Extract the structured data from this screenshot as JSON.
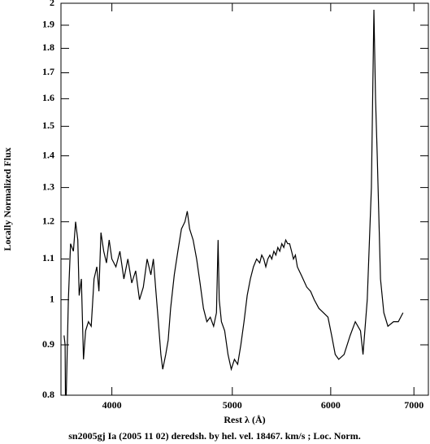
{
  "chart_data": {
    "type": "line",
    "xlabel": "Rest λ (Å)",
    "ylabel": "Locally Normalized Flux",
    "caption": "sn2005gj Ia (2005 11 02) deredsh. by hel. vel. 18467. km/s ;  Loc. Norm.",
    "xscale": "log",
    "yscale": "log",
    "xlim": [
      3640,
      7190
    ],
    "xticks": [
      4000,
      5000,
      6000,
      7000
    ],
    "ylim": [
      0.8,
      2
    ],
    "yticks": [
      0.8,
      0.9,
      1,
      1.1,
      1.2,
      1.3,
      1.4,
      1.5,
      1.6,
      1.7,
      1.8,
      1.9,
      2
    ],
    "series": [
      {
        "color": "#000000",
        "x": [
          3661,
          3668,
          3670,
          3676,
          3690,
          3705,
          3725,
          3740,
          3755,
          3765,
          3780,
          3795,
          3810,
          3830,
          3850,
          3870,
          3890,
          3905,
          3920,
          3940,
          3960,
          3980,
          4000,
          4030,
          4060,
          4090,
          4120,
          4150,
          4180,
          4210,
          4240,
          4270,
          4300,
          4320,
          4340,
          4360,
          4380,
          4395,
          4420,
          4440,
          4460,
          4490,
          4520,
          4550,
          4580,
          4600,
          4620,
          4650,
          4680,
          4710,
          4740,
          4770,
          4800,
          4830,
          4855,
          4870,
          4880,
          4900,
          4930,
          4960,
          4990,
          5020,
          5050,
          5080,
          5110,
          5140,
          5170,
          5200,
          5230,
          5260,
          5280,
          5300,
          5320,
          5340,
          5360,
          5380,
          5400,
          5420,
          5440,
          5460,
          5480,
          5500,
          5520,
          5540,
          5560,
          5580,
          5600,
          5620,
          5640,
          5660,
          5680,
          5700,
          5740,
          5780,
          5820,
          5870,
          5920,
          5970,
          6010,
          6050,
          6090,
          6150,
          6220,
          6280,
          6340,
          6370,
          6420,
          6470,
          6500,
          6520,
          6540,
          6580,
          6620,
          6670,
          6740,
          6800,
          6860
        ],
        "values": [
          0.92,
          0.9,
          0.8,
          0.8,
          1.0,
          1.14,
          1.12,
          1.2,
          1.15,
          1.01,
          1.05,
          0.87,
          0.93,
          0.95,
          0.94,
          1.05,
          1.08,
          1.02,
          1.17,
          1.12,
          1.09,
          1.15,
          1.1,
          1.08,
          1.12,
          1.05,
          1.1,
          1.04,
          1.07,
          1.0,
          1.03,
          1.1,
          1.06,
          1.1,
          1.02,
          0.95,
          0.88,
          0.85,
          0.88,
          0.91,
          0.98,
          1.06,
          1.12,
          1.18,
          1.2,
          1.23,
          1.18,
          1.15,
          1.1,
          1.04,
          0.98,
          0.95,
          0.96,
          0.94,
          0.97,
          1.15,
          1.0,
          0.95,
          0.93,
          0.88,
          0.85,
          0.87,
          0.86,
          0.9,
          0.95,
          1.01,
          1.05,
          1.08,
          1.1,
          1.09,
          1.11,
          1.1,
          1.08,
          1.1,
          1.11,
          1.1,
          1.12,
          1.11,
          1.13,
          1.12,
          1.14,
          1.13,
          1.15,
          1.14,
          1.14,
          1.12,
          1.1,
          1.11,
          1.08,
          1.07,
          1.06,
          1.05,
          1.03,
          1.02,
          1.0,
          0.98,
          0.97,
          0.96,
          0.92,
          0.88,
          0.87,
          0.88,
          0.92,
          0.95,
          0.93,
          0.88,
          1.0,
          1.3,
          1.97,
          1.6,
          1.4,
          1.05,
          0.97,
          0.94,
          0.95,
          0.95,
          0.97
        ]
      }
    ]
  }
}
